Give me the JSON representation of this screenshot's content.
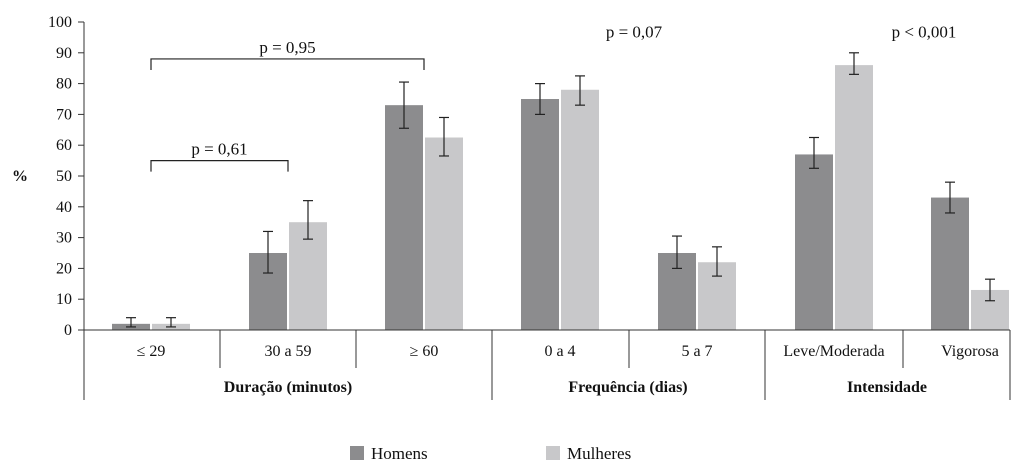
{
  "chart_data": {
    "type": "bar",
    "ylabel": "%",
    "ylim": [
      0,
      100
    ],
    "yticks": [
      "0",
      "10",
      "20",
      "30",
      "40",
      "50",
      "60",
      "70",
      "80",
      "90",
      "100"
    ],
    "categories": [
      "≤ 29",
      "30 a 59",
      "≥ 60",
      "0 a 4",
      "5 a 7",
      "Leve/Moderada",
      "Vigorosa"
    ],
    "groups": [
      {
        "label": "Duração (minutos)",
        "categories": [
          "≤ 29",
          "30 a 59",
          "≥ 60"
        ]
      },
      {
        "label": "Frequência (dias)",
        "categories": [
          "0 a 4",
          "5 a 7"
        ]
      },
      {
        "label": "Intensidade",
        "categories": [
          "Leve/Moderada",
          "Vigorosa"
        ]
      }
    ],
    "series": [
      {
        "name": "Homens",
        "color": "#8c8c8e",
        "values": [
          2,
          25,
          73,
          75,
          25,
          57,
          43
        ],
        "error_low": [
          1,
          18.5,
          65.5,
          70,
          20,
          52.5,
          38
        ],
        "error_high": [
          4,
          32,
          80.5,
          80,
          30.5,
          62.5,
          48
        ]
      },
      {
        "name": "Mulheres",
        "color": "#c8c8ca",
        "values": [
          2,
          35,
          62.5,
          78,
          22,
          86,
          13
        ],
        "error_low": [
          1,
          29.5,
          56.5,
          73,
          17.5,
          83,
          9.5
        ],
        "error_high": [
          4,
          42,
          69,
          82.5,
          27,
          90,
          16.5
        ]
      }
    ],
    "annotations": [
      {
        "text": "p = 0,95",
        "bracket": true,
        "from": 0,
        "to": 2,
        "y": 88
      },
      {
        "text": "p = 0,61",
        "bracket": true,
        "from": 0,
        "to": 1,
        "y": 55
      },
      {
        "text": "p = 0,07",
        "bracket": false,
        "group": 1,
        "y": 96
      },
      {
        "text": "p < 0,001",
        "bracket": false,
        "group": 2,
        "y": 96
      }
    ],
    "legend_position": "bottom-center",
    "grid": false
  }
}
